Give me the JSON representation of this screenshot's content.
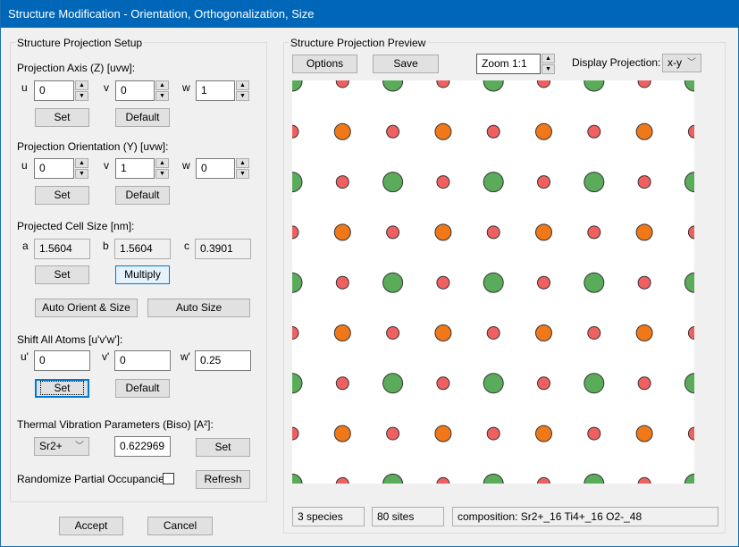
{
  "window": {
    "title": "Structure Modification - Orientation, Orthogonalization, Size"
  },
  "setup": {
    "title": "Structure Projection Setup",
    "axis": {
      "label": "Projection Axis (Z) [uvw]:",
      "u_label": "u",
      "v_label": "v",
      "w_label": "w",
      "u": "0",
      "v": "0",
      "w": "1",
      "set": "Set",
      "default": "Default"
    },
    "orient": {
      "label": "Projection Orientation (Y) [uvw]:",
      "u_label": "u",
      "v_label": "v",
      "w_label": "w",
      "u": "0",
      "v": "1",
      "w": "0",
      "set": "Set",
      "default": "Default"
    },
    "cell": {
      "label": "Projected Cell Size [nm]:",
      "a_label": "a",
      "b_label": "b",
      "c_label": "c",
      "a": "1.5604",
      "b": "1.5604",
      "c": "0.3901",
      "set": "Set",
      "multiply": "Multiply"
    },
    "auto_orient": "Auto Orient & Size",
    "auto_size": "Auto Size",
    "shift": {
      "label": "Shift All Atoms [u'v'w']:",
      "u_label": "u'",
      "v_label": "v'",
      "w_label": "w'",
      "u": "0",
      "v": "0",
      "w": "0.25",
      "set": "Set",
      "default": "Default"
    },
    "thermal": {
      "label": "Thermal Vibration Parameters (Biso) [A²]:",
      "species": "Sr2+",
      "value": "0.622969",
      "set": "Set"
    },
    "randomize": {
      "label": "Randomize Partial Occupancies:",
      "checked": false,
      "refresh": "Refresh"
    }
  },
  "footer": {
    "accept": "Accept",
    "cancel": "Cancel"
  },
  "preview": {
    "title": "Structure Projection Preview",
    "options": "Options",
    "save": "Save",
    "zoom": "Zoom 1:1",
    "display_label": "Display Projection:",
    "display_value": "x-y",
    "species": [
      {
        "name": "Sr2+",
        "color": "#5aac5a"
      },
      {
        "name": "Ti4+",
        "color": "#f07818"
      },
      {
        "name": "O2-",
        "color": "#f06060"
      }
    ],
    "status": {
      "species": "3 species",
      "sites": "80 sites",
      "composition": "composition: Sr2+_16 Ti4+_16 O2-_48"
    }
  }
}
